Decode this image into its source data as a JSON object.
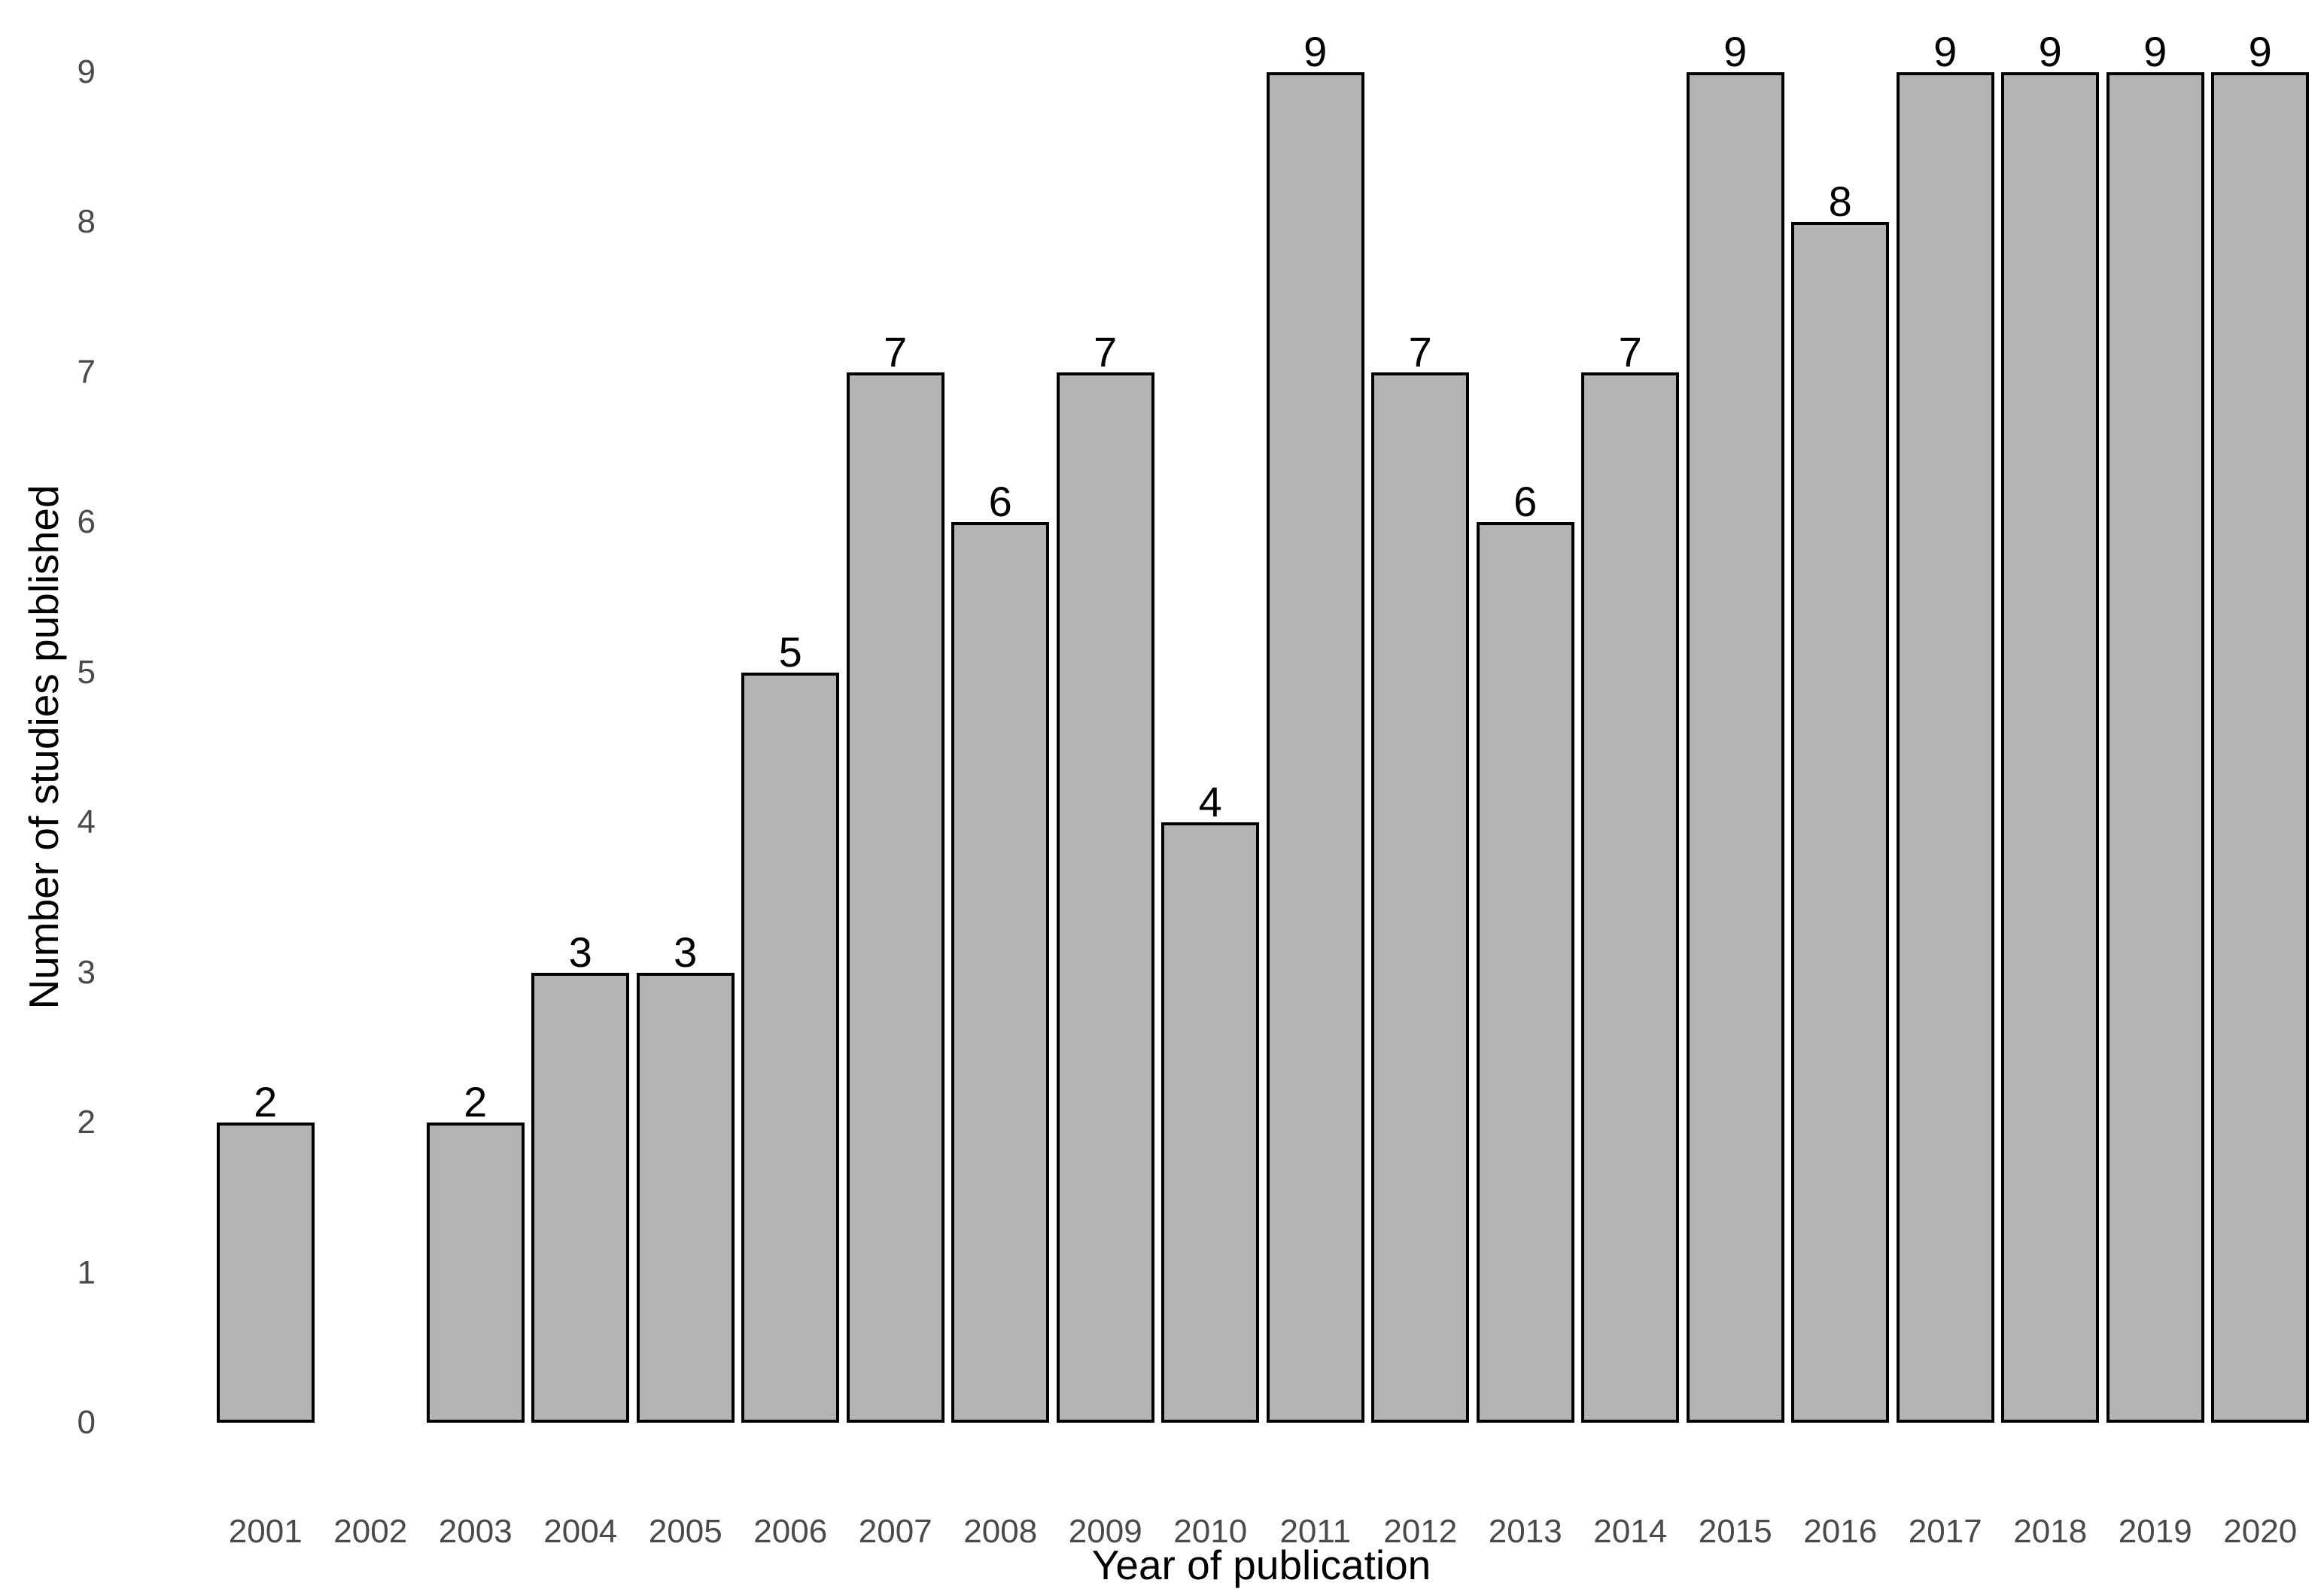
{
  "chart_data": {
    "type": "bar",
    "title": "",
    "xlabel": "Year of publication",
    "ylabel": "Number of studies published",
    "categories": [
      "2001",
      "2002",
      "2003",
      "2004",
      "2005",
      "2006",
      "2007",
      "2008",
      "2009",
      "2010",
      "2011",
      "2012",
      "2013",
      "2014",
      "2015",
      "2016",
      "2017",
      "2018",
      "2019",
      "2020"
    ],
    "values": [
      2,
      0,
      2,
      3,
      3,
      5,
      7,
      6,
      7,
      4,
      9,
      7,
      6,
      7,
      9,
      8,
      9,
      9,
      9,
      9
    ],
    "bar_value_labels_shown": true,
    "y_ticks": [
      0,
      1,
      2,
      3,
      4,
      5,
      6,
      7,
      8,
      9
    ],
    "ylim": [
      0,
      9
    ],
    "grid": false,
    "legend": "none",
    "axis_lines": false,
    "colors": {
      "background": "#ffffff",
      "bar_fill": "#b4b4b4",
      "bar_stroke": "#000000",
      "tick_label": "#4a4a4a",
      "axis_title": "#000000",
      "value_label": "#000000"
    }
  }
}
